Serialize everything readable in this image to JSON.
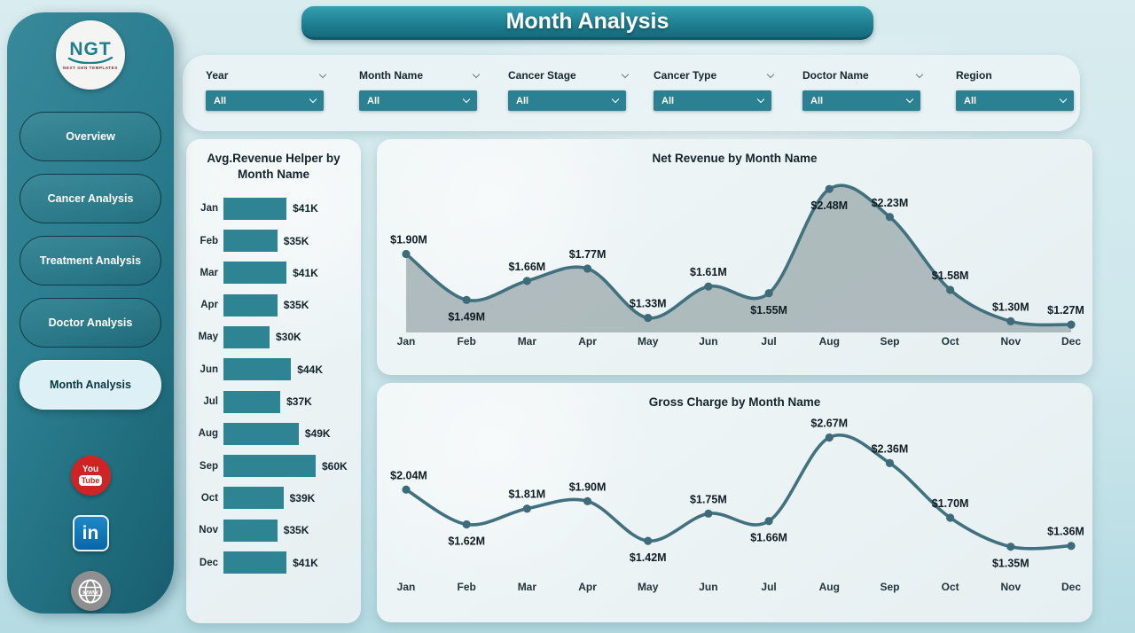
{
  "app": {
    "title": "Month Analysis"
  },
  "sidebar": {
    "logo": {
      "text": "NGT",
      "subtext": "NEXT GEN TEMPLATES"
    },
    "items": [
      {
        "label": "Overview",
        "active": false
      },
      {
        "label": "Cancer Analysis",
        "active": false
      },
      {
        "label": "Treatment Analysis",
        "active": false
      },
      {
        "label": "Doctor Analysis",
        "active": false
      },
      {
        "label": "Month Analysis",
        "active": true
      }
    ],
    "social": [
      {
        "name": "youtube",
        "line1": "You",
        "line2": "Tube"
      },
      {
        "name": "linkedin",
        "text": "in"
      },
      {
        "name": "website",
        "text": "www"
      }
    ]
  },
  "filters": [
    {
      "label": "Year",
      "value": "All",
      "label_chevron": true
    },
    {
      "label": "Month Name",
      "value": "All",
      "label_chevron": true
    },
    {
      "label": "Cancer Stage",
      "value": "All",
      "label_chevron": true
    },
    {
      "label": "Cancer Type",
      "value": "All",
      "label_chevron": true
    },
    {
      "label": "Doctor Name",
      "value": "All",
      "label_chevron": true
    },
    {
      "label": "Region",
      "value": "All",
      "label_chevron": false
    }
  ],
  "chart_data": [
    {
      "type": "bar",
      "orientation": "horizontal",
      "title": "Avg.Revenue Helper by Month Name",
      "categories": [
        "Jan",
        "Feb",
        "Mar",
        "Apr",
        "May",
        "Jun",
        "Jul",
        "Aug",
        "Sep",
        "Oct",
        "Nov",
        "Dec"
      ],
      "values": [
        41,
        35,
        41,
        35,
        30,
        44,
        37,
        49,
        60,
        39,
        35,
        41
      ],
      "labels": [
        "$41K",
        "$35K",
        "$41K",
        "$35K",
        "$30K",
        "$44K",
        "$37K",
        "$49K",
        "$60K",
        "$39K",
        "$35K",
        "$41K"
      ],
      "unit": "USD thousands",
      "xlim": [
        0,
        60
      ],
      "grid": false,
      "legend": false
    },
    {
      "type": "area",
      "title": "Net Revenue by Month Name",
      "categories": [
        "Jan",
        "Feb",
        "Mar",
        "Apr",
        "May",
        "Jun",
        "Jul",
        "Aug",
        "Sep",
        "Oct",
        "Nov",
        "Dec"
      ],
      "values": [
        1.9,
        1.49,
        1.66,
        1.77,
        1.33,
        1.61,
        1.55,
        2.48,
        2.23,
        1.58,
        1.3,
        1.27
      ],
      "labels": [
        "$1.90M",
        "$1.49M",
        "$1.66M",
        "$1.77M",
        "$1.33M",
        "$1.61M",
        "$1.55M",
        "$2.48M",
        "$2.23M",
        "$1.58M",
        "$1.30M",
        "$1.27M"
      ],
      "label_side": [
        "above",
        "below",
        "above",
        "above",
        "above",
        "above",
        "below",
        "below",
        "above",
        "above",
        "above",
        "above"
      ],
      "unit": "USD millions",
      "ylim": [
        1.2,
        2.6
      ],
      "grid": false,
      "legend": false
    },
    {
      "type": "line",
      "title": "Gross Charge by Month Name",
      "categories": [
        "Jan",
        "Feb",
        "Mar",
        "Apr",
        "May",
        "Jun",
        "Jul",
        "Aug",
        "Sep",
        "Oct",
        "Nov",
        "Dec"
      ],
      "values": [
        2.04,
        1.62,
        1.81,
        1.9,
        1.42,
        1.75,
        1.66,
        2.67,
        2.36,
        1.7,
        1.35,
        1.36
      ],
      "labels": [
        "$2.04M",
        "$1.62M",
        "$1.81M",
        "$1.90M",
        "$1.42M",
        "$1.75M",
        "$1.66M",
        "$2.67M",
        "$2.36M",
        "$1.70M",
        "$1.35M",
        "$1.36M"
      ],
      "label_side": [
        "above",
        "below",
        "above",
        "above",
        "below",
        "above",
        "below",
        "above",
        "above",
        "above",
        "below",
        "above"
      ],
      "unit": "USD millions",
      "ylim": [
        1.25,
        2.75
      ],
      "grid": false,
      "legend": false
    }
  ],
  "colors": {
    "accent": "#2b8191",
    "bar": "#2e8493",
    "line": "#41707f",
    "marker": "#3d6b7a",
    "area_fill": "#9fadaf",
    "sidebar": "#27798a",
    "youtube_red": "#cf2423",
    "linkedin_blue": "#0a66a6",
    "globe_gray": "#8f8f8f"
  }
}
